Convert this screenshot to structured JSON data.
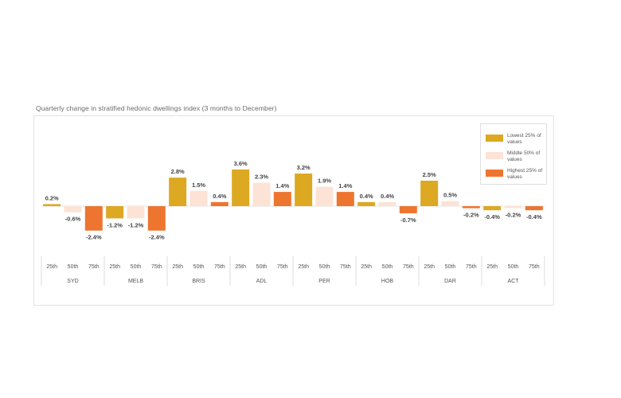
{
  "chart_data": {
    "type": "bar",
    "title": "Quarterly change in stratified hedonic dwellings index (3 months to December)",
    "cities": [
      "SYD",
      "MELB",
      "BRIS",
      "ADL",
      "PER",
      "HOB",
      "DAR",
      "ACT"
    ],
    "categories": [
      "25th",
      "50th",
      "75th"
    ],
    "series": [
      {
        "name": "Lowest 25% of values",
        "color": "#DDA822",
        "values": [
          0.2,
          -1.2,
          2.8,
          3.6,
          3.2,
          0.4,
          2.5,
          -0.4
        ]
      },
      {
        "name": "Middle 50% of values",
        "color": "#FCE3D6",
        "values": [
          -0.6,
          -1.2,
          1.5,
          2.3,
          1.9,
          0.4,
          0.5,
          -0.2
        ]
      },
      {
        "name": "Highest 25% of values",
        "color": "#EE7530",
        "values": [
          -2.4,
          -2.4,
          0.4,
          1.4,
          1.4,
          -0.7,
          -0.2,
          -0.4
        ]
      }
    ],
    "labels": [
      [
        "0.2%",
        "-0.6%",
        "-2.4%"
      ],
      [
        "-1.2%",
        "-1.2%",
        "-2.4%"
      ],
      [
        "2.8%",
        "1.5%",
        "0.4%"
      ],
      [
        "3.6%",
        "2.3%",
        "1.4%"
      ],
      [
        "3.2%",
        "1.9%",
        "1.4%"
      ],
      [
        "0.4%",
        "0.4%",
        "-0.7%"
      ],
      [
        "2.5%",
        "0.5%",
        "-0.2%"
      ],
      [
        "-0.4%",
        "-0.2%",
        "-0.4%"
      ]
    ],
    "legend_position": "top-right",
    "grid": false
  }
}
